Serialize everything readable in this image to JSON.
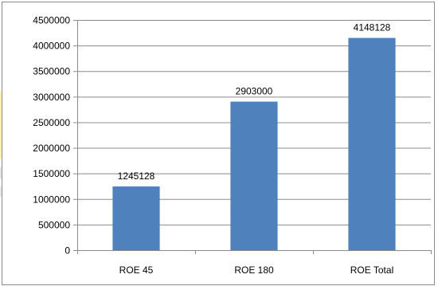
{
  "chart_data": {
    "type": "bar",
    "categories": [
      "ROE 45",
      "ROE 180",
      "ROE Total"
    ],
    "values": [
      1245128,
      2903000,
      4148128
    ],
    "data_labels": [
      "1245128",
      "2903000",
      "4148128"
    ],
    "title": "",
    "xlabel": "",
    "ylabel": "",
    "ylim": [
      0,
      4500000
    ],
    "y_ticks": [
      0,
      500000,
      1000000,
      1500000,
      2000000,
      2500000,
      3000000,
      3500000,
      4000000,
      4500000
    ],
    "y_tick_labels": [
      "0",
      "500000",
      "1000000",
      "1500000",
      "2000000",
      "2500000",
      "3000000",
      "3500000",
      "4000000",
      "4500000"
    ],
    "grid": true,
    "legend": "none",
    "colors": {
      "bar": "#4f81bd",
      "grid": "#8c8c8c",
      "axis": "#8c8c8c",
      "stripe_yellow": "#fdeea0",
      "stripe_gray": "#d9d9d9"
    }
  }
}
